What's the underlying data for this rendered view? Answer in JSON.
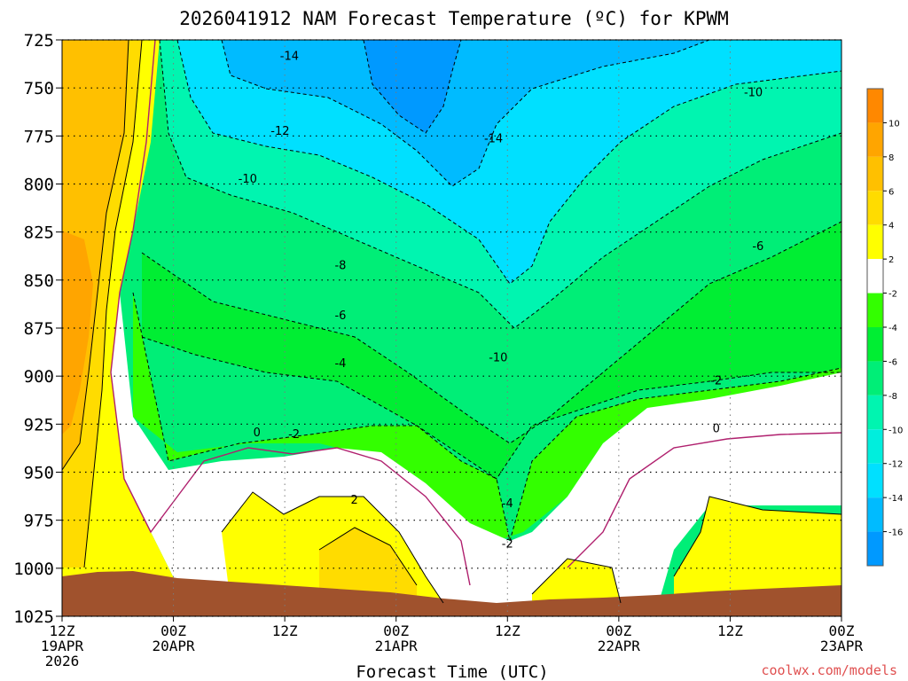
{
  "chart_data": {
    "type": "heatmap",
    "title": "2026041912 NAM Forecast Temperature (ºC) for KPWM",
    "xlabel": "Forecast Time (UTC)",
    "ylabel": "",
    "watermark": "coolwx.com/models",
    "y_axis": {
      "scale": "pressure (inverted, top=725)",
      "range": [
        725,
        1025
      ],
      "ticks": [
        "725",
        "750",
        "775",
        "800",
        "825",
        "850",
        "875",
        "900",
        "925",
        "950",
        "975",
        "1000",
        "1025"
      ]
    },
    "x_axis": {
      "range_hours": [
        0,
        84
      ],
      "ticks": [
        {
          "hour": 0,
          "label1": "12Z",
          "label2": "19APR",
          "label3": "2026"
        },
        {
          "hour": 12,
          "label1": "00Z",
          "label2": "20APR",
          "label3": ""
        },
        {
          "hour": 24,
          "label1": "12Z",
          "label2": "",
          "label3": ""
        },
        {
          "hour": 36,
          "label1": "00Z",
          "label2": "21APR",
          "label3": ""
        },
        {
          "hour": 48,
          "label1": "12Z",
          "label2": "",
          "label3": ""
        },
        {
          "hour": 60,
          "label1": "00Z",
          "label2": "22APR",
          "label3": ""
        },
        {
          "hour": 72,
          "label1": "12Z",
          "label2": "",
          "label3": ""
        },
        {
          "hour": 84,
          "label1": "00Z",
          "label2": "23APR",
          "label3": ""
        }
      ]
    },
    "colorbar": {
      "labels": [
        "10",
        "8",
        "6",
        "4",
        "2",
        "-2",
        "-4",
        "-6",
        "-8",
        "-10",
        "-12",
        "-14",
        "-16"
      ],
      "bins": [
        {
          "color": "#ff8800"
        },
        {
          "color": "#ffa500"
        },
        {
          "color": "#ffc000"
        },
        {
          "color": "#ffdc00"
        },
        {
          "color": "#ffff00"
        },
        {
          "color": "#ffffff"
        },
        {
          "color": "#33ff00"
        },
        {
          "color": "#00ee33"
        },
        {
          "color": "#00ee77"
        },
        {
          "color": "#00f5b0"
        },
        {
          "color": "#00eedd"
        },
        {
          "color": "#00e0ff"
        },
        {
          "color": "#00bbff"
        },
        {
          "color": "#0099ff"
        }
      ]
    },
    "contour_labels": [
      {
        "text": "-14",
        "hour": 24.5,
        "p": 733
      },
      {
        "text": "-10",
        "hour": 74.5,
        "p": 752
      },
      {
        "text": "-12",
        "hour": 23.5,
        "p": 772
      },
      {
        "text": "-14",
        "hour": 46.5,
        "p": 776
      },
      {
        "text": "-10",
        "hour": 20,
        "p": 797
      },
      {
        "text": "-8",
        "hour": 30,
        "p": 842
      },
      {
        "text": "-6",
        "hour": 75,
        "p": 832
      },
      {
        "text": "-6",
        "hour": 30,
        "p": 868
      },
      {
        "text": "-4",
        "hour": 30,
        "p": 893
      },
      {
        "text": "-10",
        "hour": 47,
        "p": 890
      },
      {
        "text": "-2",
        "hour": 70.5,
        "p": 902
      },
      {
        "text": "0",
        "hour": 21,
        "p": 929
      },
      {
        "text": "-2",
        "hour": 25,
        "p": 930
      },
      {
        "text": "0",
        "hour": 70.5,
        "p": 927
      },
      {
        "text": "2",
        "hour": 31.5,
        "p": 964
      },
      {
        "text": "-4",
        "hour": 48,
        "p": 966
      },
      {
        "text": "-2",
        "hour": 48,
        "p": 987
      }
    ]
  }
}
